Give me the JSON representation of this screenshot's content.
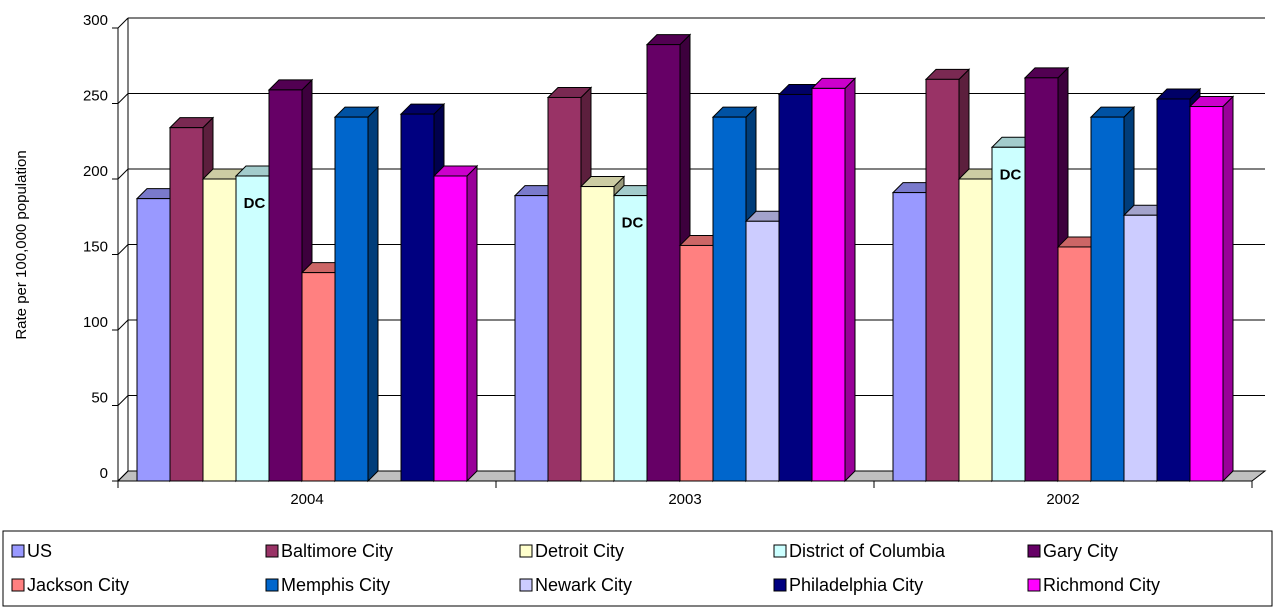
{
  "chart_data": {
    "type": "bar3d",
    "y_label": "Rate per 100,000 population",
    "categories": [
      "2004",
      "2003",
      "2002"
    ],
    "series": [
      {
        "name": "US",
        "color": "#9999ff",
        "values": [
          187,
          189,
          191
        ]
      },
      {
        "name": "Baltimore City",
        "color": "#993366",
        "values": [
          234,
          254,
          266
        ]
      },
      {
        "name": "Detroit City",
        "color": "#ffffcc",
        "values": [
          200,
          195,
          200
        ]
      },
      {
        "name": "District of Columbia",
        "color": "#ccffff",
        "values": [
          202,
          189,
          221
        ]
      },
      {
        "name": "Gary City",
        "color": "#660066",
        "values": [
          259,
          289,
          267
        ]
      },
      {
        "name": "Jackson City",
        "color": "#ff8080",
        "values": [
          138,
          156,
          155
        ]
      },
      {
        "name": "Memphis City",
        "color": "#0066cc",
        "values": [
          241,
          241,
          241
        ]
      },
      {
        "name": "Newark City",
        "color": "#ccccff",
        "values": [
          null,
          172,
          176
        ]
      },
      {
        "name": "Philadelphia City",
        "color": "#000080",
        "values": [
          243,
          256,
          253
        ]
      },
      {
        "name": "Richmond City",
        "color": "#ff00ff",
        "values": [
          202,
          260,
          248
        ]
      }
    ],
    "annotations": [
      "DC",
      "DC",
      "DC"
    ],
    "ylim": [
      0,
      300
    ],
    "yticks": [
      0,
      50,
      100,
      150,
      200,
      250,
      300
    ],
    "grid": true,
    "legend": "bottom"
  }
}
